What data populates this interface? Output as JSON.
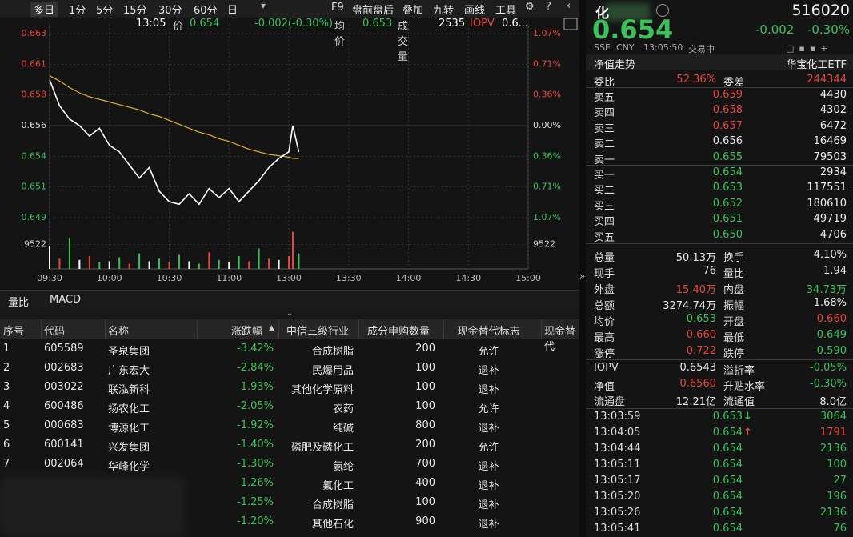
{
  "toolbar": {
    "tabs": [
      "多日",
      "1分",
      "5分",
      "15分",
      "30分",
      "60分",
      "日"
    ],
    "tools": [
      "F9",
      "盘前盘后",
      "叠加",
      "九转",
      "画线",
      "工具"
    ]
  },
  "quote_bar": {
    "time": "13:05",
    "price_label": "价",
    "price": "0.654",
    "change": "-0.002(-0.30%)",
    "avg_label": "均价",
    "avg": "0.653",
    "volume_label": "成交量",
    "volume": "2535",
    "iopv_label": "IOPV",
    "iopv": "0.6..."
  },
  "chart_data": {
    "type": "line",
    "x": [
      "09:30",
      "09:35",
      "09:40",
      "09:45",
      "09:50",
      "09:55",
      "10:00",
      "10:05",
      "10:10",
      "10:15",
      "10:20",
      "10:25",
      "10:30",
      "10:35",
      "10:40",
      "10:45",
      "10:50",
      "10:55",
      "11:00",
      "11:05",
      "11:10",
      "11:15",
      "11:20",
      "11:25",
      "11:30",
      "13:02",
      "13:05"
    ],
    "series": [
      {
        "color": "#ffffff",
        "values": [
          0.6595,
          0.6575,
          0.6565,
          0.656,
          0.6552,
          0.6558,
          0.6545,
          0.654,
          0.653,
          0.652,
          0.6528,
          0.651,
          0.6502,
          0.65,
          0.6508,
          0.65,
          0.6512,
          0.6505,
          0.6512,
          0.6502,
          0.651,
          0.6518,
          0.6528,
          0.6535,
          0.654,
          0.656,
          0.654
        ]
      },
      {
        "color": "#e0b030",
        "values": [
          0.6598,
          0.6594,
          0.6589,
          0.6585,
          0.6582,
          0.658,
          0.6578,
          0.6576,
          0.6574,
          0.6572,
          0.6569,
          0.6567,
          0.6564,
          0.6561,
          0.6558,
          0.6555,
          0.6553,
          0.655,
          0.6548,
          0.6545,
          0.6542,
          0.654,
          0.6538,
          0.6537,
          0.6536,
          0.6535,
          0.6535
        ]
      }
    ],
    "ylim": [
      0.64898,
      0.66302
    ],
    "yticks": [
      {
        "value": 0.66302,
        "label": "0.663"
      },
      {
        "value": 0.66068,
        "label": "0.661"
      },
      {
        "value": 0.65834,
        "label": "0.658"
      },
      {
        "value": 0.656,
        "label": "0.656"
      },
      {
        "value": 0.65366,
        "label": "0.654"
      },
      {
        "value": 0.65132,
        "label": "0.651"
      },
      {
        "value": 0.64898,
        "label": "0.649"
      }
    ],
    "y2lim": [
      -1.07,
      1.07
    ],
    "y2ticks": [
      {
        "value": 1.07,
        "label": "1.07%"
      },
      {
        "value": 0.71,
        "label": "0.71%"
      },
      {
        "value": 0.36,
        "label": "0.36%"
      },
      {
        "value": 0,
        "label": "0.00%"
      },
      {
        "value": -0.36,
        "label": "0.36%"
      },
      {
        "value": -0.71,
        "label": "0.71%"
      },
      {
        "value": -1.07,
        "label": "1.07%"
      }
    ],
    "xticks": [
      "09:30",
      "10:00",
      "10:30",
      "11:00",
      "13:00",
      "13:30",
      "14:00",
      "14:30",
      "15:00"
    ],
    "volume": {
      "values": [
        9000,
        4000,
        12000,
        3500,
        5000,
        2500,
        3000,
        4500,
        2000,
        6000,
        3000,
        4000,
        2500,
        5500,
        3000,
        2000,
        6500,
        3500,
        2500,
        5000,
        3000,
        8000,
        4000,
        3500,
        5000,
        14500,
        6000
      ],
      "colors": [
        "#ffffff",
        "#e8453c",
        "#3bc15b",
        "#ffffff",
        "#e8453c",
        "#3bc15b",
        "#ffffff",
        "#3bc15b",
        "#e8453c",
        "#3bc15b",
        "#ffffff",
        "#3bc15b",
        "#e8453c",
        "#3bc15b",
        "#ffffff",
        "#3bc15b",
        "#e8453c",
        "#3bc15b",
        "#ffffff",
        "#3bc15b",
        "#e8453c",
        "#3bc15b",
        "#e8453c",
        "#ffffff",
        "#e8453c",
        "#e8453c",
        "#3bc15b"
      ],
      "ylim": [
        0,
        15000
      ],
      "yticks": [
        9522
      ]
    },
    "grid": true
  },
  "indicator_tabs": [
    "量比",
    "MACD"
  ],
  "table": {
    "columns": [
      "序号",
      "代码",
      "名称",
      "涨跌幅",
      "中信三级行业",
      "成分申购数量",
      "现金替代标志",
      "现金替代"
    ],
    "rows": [
      [
        "1",
        "605589",
        "圣泉集团",
        "-3.42%",
        "合成树脂",
        "200",
        "允许"
      ],
      [
        "2",
        "002683",
        "广东宏大",
        "-2.84%",
        "民爆用品",
        "100",
        "退补"
      ],
      [
        "3",
        "003022",
        "联泓新科",
        "-1.93%",
        "其他化学原料",
        "100",
        "退补"
      ],
      [
        "4",
        "600486",
        "扬农化工",
        "-2.05%",
        "农药",
        "100",
        "允许"
      ],
      [
        "5",
        "000683",
        "博源化工",
        "-1.92%",
        "纯碱",
        "800",
        "退补"
      ],
      [
        "6",
        "600141",
        "兴发集团",
        "-1.40%",
        "磷肥及磷化工",
        "200",
        "允许"
      ],
      [
        "7",
        "002064",
        "华峰化学",
        "-1.30%",
        "氨纶",
        "700",
        "退补"
      ],
      [
        null,
        null,
        null,
        "-1.26%",
        "氟化工",
        "400",
        "退补"
      ],
      [
        null,
        null,
        null,
        "-1.25%",
        "合成树脂",
        "100",
        "退补"
      ],
      [
        null,
        null,
        null,
        "-1.20%",
        "其他石化",
        "900",
        "退补"
      ]
    ]
  },
  "quote": {
    "name": "化",
    "code": "516020",
    "price": "0.654",
    "change": "-0.002",
    "change_pct": "-0.30%",
    "meta": [
      "SSE",
      "CNY",
      "13:05:50",
      "交易中"
    ],
    "nav_tab": "净值走势",
    "fund_name": "华宝化工ETF",
    "ratio": {
      "cells": [
        "委比",
        "52.36%",
        "委差",
        "244344"
      ],
      "colors": [
        "#e8453c",
        "#e8453c"
      ]
    },
    "asks": [
      {
        "label": "卖五",
        "price": "0.659",
        "volume": "4430",
        "color": "#e8453c"
      },
      {
        "label": "卖四",
        "price": "0.658",
        "volume": "4302",
        "color": "#e8453c"
      },
      {
        "label": "卖三",
        "price": "0.657",
        "volume": "6472",
        "color": "#e8453c"
      },
      {
        "label": "卖二",
        "price": "0.656",
        "volume": "16469",
        "color": "#e6e6e6"
      },
      {
        "label": "卖一",
        "price": "0.655",
        "volume": "79503",
        "color": "#3bc15b"
      }
    ],
    "bids": [
      {
        "label": "买一",
        "price": "0.654",
        "volume": "2934",
        "color": "#3bc15b"
      },
      {
        "label": "买二",
        "price": "0.653",
        "volume": "117551",
        "color": "#3bc15b"
      },
      {
        "label": "买三",
        "price": "0.652",
        "volume": "180610",
        "color": "#3bc15b"
      },
      {
        "label": "买四",
        "price": "0.651",
        "volume": "49719",
        "color": "#3bc15b"
      },
      {
        "label": "买五",
        "price": "0.650",
        "volume": "4706",
        "color": "#3bc15b"
      }
    ],
    "stats": [
      {
        "cells": [
          "总量",
          "50.13万",
          "换手",
          "4.10%"
        ],
        "colors": [
          "#e6e6e6",
          "#e6e6e6"
        ]
      },
      {
        "cells": [
          "现手",
          "76",
          "量比",
          "1.94"
        ],
        "colors": [
          "#e6e6e6",
          "#e6e6e6"
        ]
      },
      {
        "cells": [
          "外盘",
          "15.40万",
          "内盘",
          "34.73万"
        ],
        "colors": [
          "#e8453c",
          "#3bc15b"
        ]
      },
      {
        "cells": [
          "总额",
          "3274.74万",
          "振幅",
          "1.68%"
        ],
        "colors": [
          "#e6e6e6",
          "#e6e6e6"
        ]
      },
      {
        "cells": [
          "均价",
          "0.653",
          "开盘",
          "0.660"
        ],
        "colors": [
          "#3bc15b",
          "#e8453c"
        ]
      },
      {
        "cells": [
          "最高",
          "0.660",
          "最低",
          "0.649"
        ],
        "colors": [
          "#e8453c",
          "#3bc15b"
        ]
      },
      {
        "cells": [
          "涨停",
          "0.722",
          "跌停",
          "0.590"
        ],
        "colors": [
          "#e8453c",
          "#3bc15b"
        ]
      }
    ],
    "fund_stats": [
      {
        "cells": [
          "IOPV",
          "0.6543",
          "溢折率",
          "-0.05%"
        ],
        "colors": [
          "#e6e6e6",
          "#3bc15b"
        ]
      },
      {
        "cells": [
          "净值",
          "0.6560",
          "升贴水率",
          "-0.30%"
        ],
        "colors": [
          "#e8453c",
          "#3bc15b"
        ]
      },
      {
        "cells": [
          "流通盘",
          "12.21亿",
          "流通值",
          "8.0亿"
        ],
        "colors": [
          "#e6e6e6",
          "#e6e6e6"
        ]
      }
    ],
    "trades": [
      {
        "time": "13:03:59",
        "price": "0.653",
        "volume": "3064",
        "dir": "down",
        "color": "#3bc15b"
      },
      {
        "time": "13:04:05",
        "price": "0.654",
        "volume": "1791",
        "dir": "up",
        "color": "#e8453c"
      },
      {
        "time": "13:04:44",
        "price": "0.654",
        "volume": "2136",
        "color": "#3bc15b"
      },
      {
        "time": "13:05:11",
        "price": "0.654",
        "volume": "100",
        "color": "#3bc15b"
      },
      {
        "time": "13:05:17",
        "price": "0.654",
        "volume": "27",
        "color": "#3bc15b"
      },
      {
        "time": "13:05:20",
        "price": "0.654",
        "volume": "196",
        "color": "#3bc15b"
      },
      {
        "time": "13:05:26",
        "price": "0.654",
        "volume": "2136",
        "color": "#3bc15b"
      },
      {
        "time": "13:05:41",
        "price": "0.654",
        "volume": "76",
        "color": "#3bc15b"
      }
    ]
  }
}
